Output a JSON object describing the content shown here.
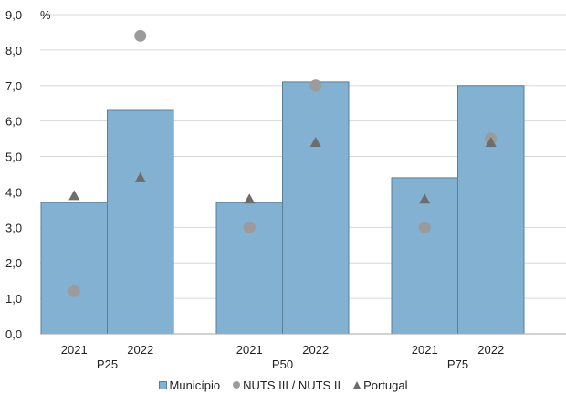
{
  "chart_data": {
    "type": "bar",
    "unit_label": "%",
    "ylim": [
      0,
      9
    ],
    "y_ticks": [
      "0,0",
      "1,0",
      "2,0",
      "3,0",
      "4,0",
      "5,0",
      "6,0",
      "7,0",
      "8,0",
      "9,0"
    ],
    "grid": true,
    "groups": [
      {
        "label": "P25",
        "categories": [
          "2021",
          "2022"
        ]
      },
      {
        "label": "P50",
        "categories": [
          "2021",
          "2022"
        ]
      },
      {
        "label": "P75",
        "categories": [
          "2021",
          "2022"
        ]
      }
    ],
    "series": [
      {
        "name": "Município",
        "kind": "bar",
        "color": "#82b1d2",
        "values": [
          3.7,
          6.3,
          3.7,
          7.1,
          4.4,
          7.0
        ]
      },
      {
        "name": "NUTS III / NUTS II",
        "kind": "circle",
        "color": "#9b9b9b",
        "values": [
          1.2,
          8.4,
          3.0,
          7.0,
          3.0,
          5.5
        ]
      },
      {
        "name": "Portugal",
        "kind": "triangle",
        "color": "#6d6d6d",
        "values": [
          3.9,
          4.4,
          3.8,
          5.4,
          3.8,
          5.4
        ]
      }
    ],
    "legend_position": "bottom"
  }
}
